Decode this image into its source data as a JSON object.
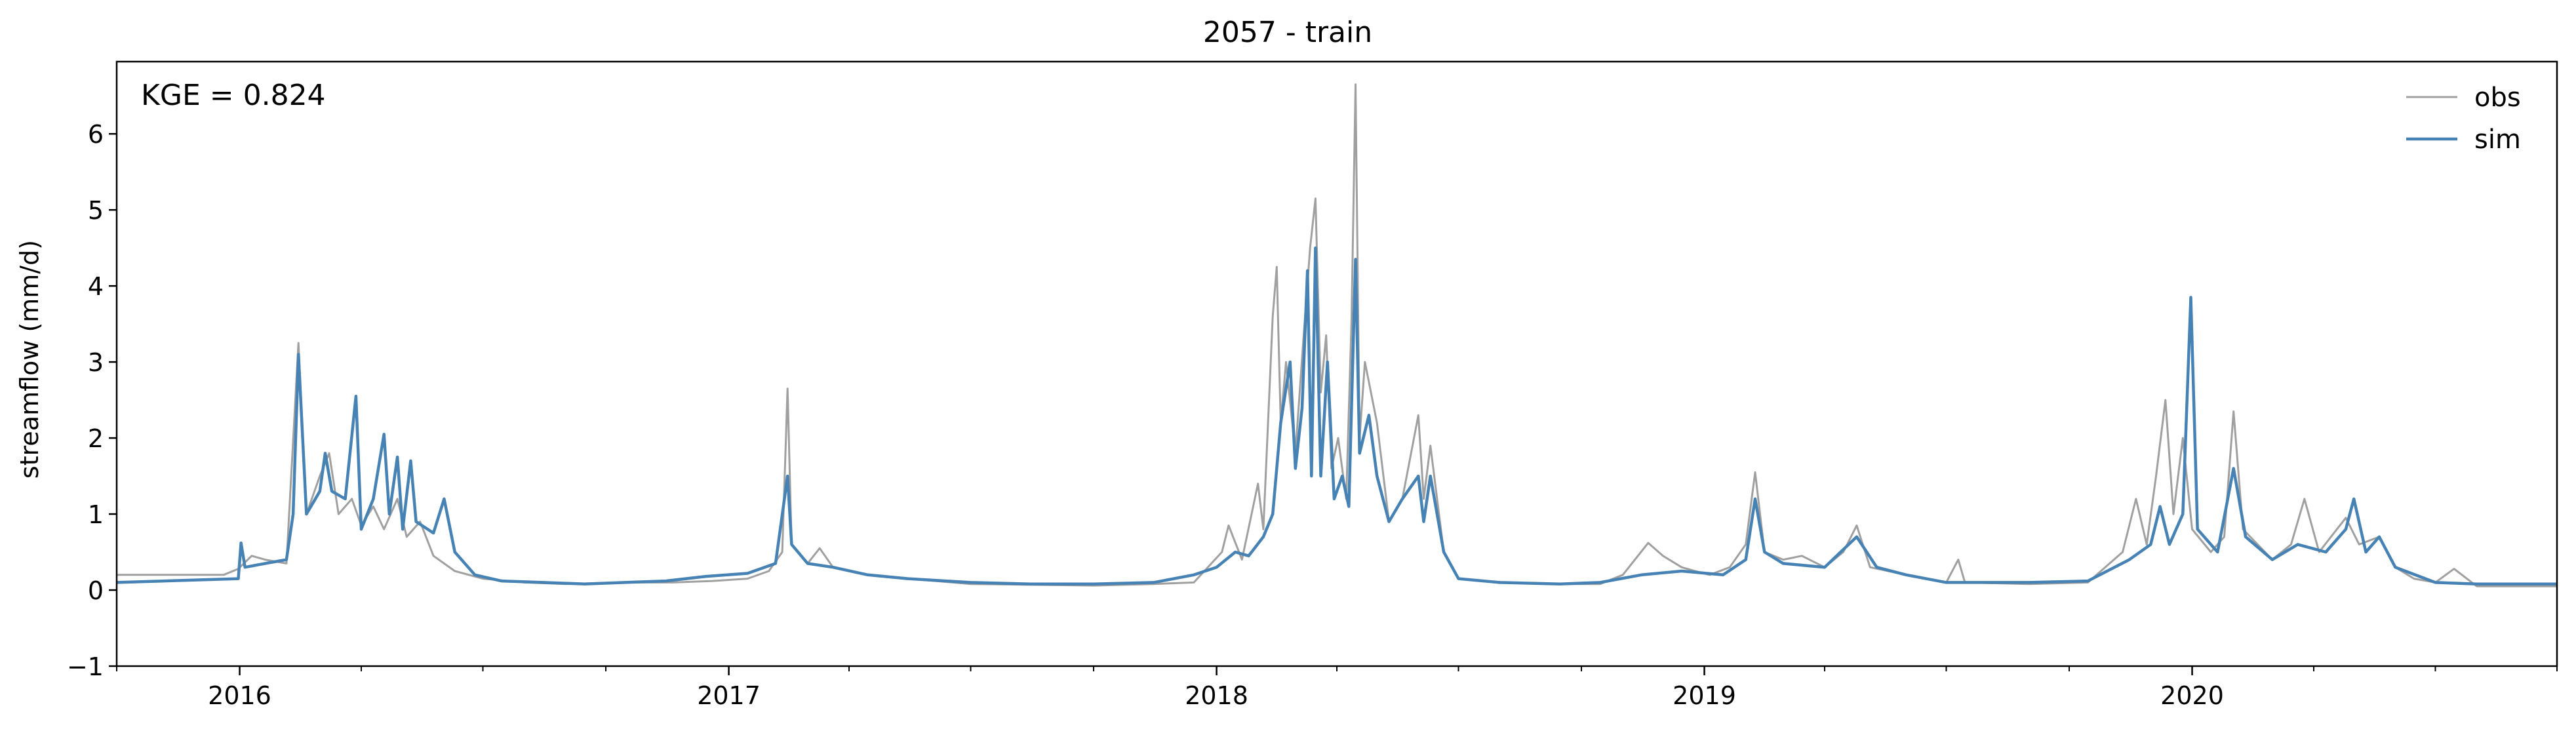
{
  "chart_data": {
    "type": "line",
    "title": "2057 - train",
    "xlabel": "",
    "ylabel": "streamflow (mm/d)",
    "annotation": "KGE = 0.824",
    "x_range": [
      "2015-10-01",
      "2020-09-30"
    ],
    "ylim": [
      -1,
      6.95
    ],
    "yticks": [
      -1,
      0,
      1,
      2,
      3,
      4,
      5,
      6
    ],
    "ytick_labels": [
      "−1",
      "0",
      "1",
      "2",
      "3",
      "4",
      "5",
      "6"
    ],
    "xticks_major": [
      {
        "date": "2016-01-01",
        "label": "2016"
      },
      {
        "date": "2017-01-01",
        "label": "2017"
      },
      {
        "date": "2018-01-01",
        "label": "2018"
      },
      {
        "date": "2019-01-01",
        "label": "2019"
      },
      {
        "date": "2020-01-01",
        "label": "2020"
      }
    ],
    "xticks_minor": [
      "2015-10-01",
      "2016-04-01",
      "2016-07-01",
      "2016-10-01",
      "2017-04-01",
      "2017-07-01",
      "2017-10-01",
      "2018-04-01",
      "2018-07-01",
      "2018-10-01",
      "2019-04-01",
      "2019-07-01",
      "2019-10-01",
      "2020-04-01",
      "2020-07-01",
      "2020-09-30"
    ],
    "grid": false,
    "legend_position": "top-right",
    "series": [
      {
        "name": "obs",
        "color": "#a0a0a0",
        "points": [
          [
            "2015-10-01",
            0.2
          ],
          [
            "2015-12-20",
            0.2
          ],
          [
            "2015-12-31",
            0.28
          ],
          [
            "2016-01-10",
            0.45
          ],
          [
            "2016-01-20",
            0.4
          ],
          [
            "2016-02-05",
            0.35
          ],
          [
            "2016-02-14",
            3.25
          ],
          [
            "2016-02-20",
            1.0
          ],
          [
            "2016-03-01",
            1.5
          ],
          [
            "2016-03-08",
            1.8
          ],
          [
            "2016-03-15",
            1.0
          ],
          [
            "2016-03-25",
            1.2
          ],
          [
            "2016-04-01",
            0.85
          ],
          [
            "2016-04-10",
            1.1
          ],
          [
            "2016-04-18",
            0.8
          ],
          [
            "2016-04-28",
            1.2
          ],
          [
            "2016-05-05",
            0.7
          ],
          [
            "2016-05-15",
            0.9
          ],
          [
            "2016-05-25",
            0.45
          ],
          [
            "2016-06-10",
            0.25
          ],
          [
            "2016-07-01",
            0.15
          ],
          [
            "2016-08-01",
            0.1
          ],
          [
            "2016-09-01",
            0.08
          ],
          [
            "2016-10-15",
            0.1
          ],
          [
            "2016-11-20",
            0.1
          ],
          [
            "2016-12-20",
            0.12
          ],
          [
            "2017-01-15",
            0.15
          ],
          [
            "2017-01-31",
            0.25
          ],
          [
            "2017-02-10",
            0.5
          ],
          [
            "2017-02-14",
            2.65
          ],
          [
            "2017-02-17",
            0.6
          ],
          [
            "2017-03-01",
            0.35
          ],
          [
            "2017-03-10",
            0.55
          ],
          [
            "2017-03-20",
            0.3
          ],
          [
            "2017-04-15",
            0.2
          ],
          [
            "2017-05-15",
            0.15
          ],
          [
            "2017-07-01",
            0.08
          ],
          [
            "2017-08-15",
            0.07
          ],
          [
            "2017-10-01",
            0.06
          ],
          [
            "2017-11-15",
            0.08
          ],
          [
            "2017-12-15",
            0.1
          ],
          [
            "2018-01-05",
            0.5
          ],
          [
            "2018-01-10",
            0.85
          ],
          [
            "2018-01-20",
            0.4
          ],
          [
            "2018-02-01",
            1.4
          ],
          [
            "2018-02-05",
            0.8
          ],
          [
            "2018-02-12",
            3.6
          ],
          [
            "2018-02-15",
            4.25
          ],
          [
            "2018-02-18",
            2.2
          ],
          [
            "2018-02-22",
            3.0
          ],
          [
            "2018-03-01",
            1.8
          ],
          [
            "2018-03-07",
            3.3
          ],
          [
            "2018-03-12",
            4.5
          ],
          [
            "2018-03-16",
            5.15
          ],
          [
            "2018-03-20",
            2.6
          ],
          [
            "2018-03-24",
            3.35
          ],
          [
            "2018-03-28",
            1.6
          ],
          [
            "2018-04-02",
            2.0
          ],
          [
            "2018-04-08",
            1.2
          ],
          [
            "2018-04-12",
            3.55
          ],
          [
            "2018-04-15",
            6.65
          ],
          [
            "2018-04-18",
            2.0
          ],
          [
            "2018-04-22",
            3.0
          ],
          [
            "2018-05-01",
            2.2
          ],
          [
            "2018-05-10",
            0.9
          ],
          [
            "2018-05-20",
            1.2
          ],
          [
            "2018-06-01",
            2.3
          ],
          [
            "2018-06-05",
            1.2
          ],
          [
            "2018-06-10",
            1.9
          ],
          [
            "2018-06-20",
            0.5
          ],
          [
            "2018-07-01",
            0.15
          ],
          [
            "2018-08-01",
            0.1
          ],
          [
            "2018-09-15",
            0.08
          ],
          [
            "2018-10-15",
            0.08
          ],
          [
            "2018-11-01",
            0.2
          ],
          [
            "2018-11-20",
            0.62
          ],
          [
            "2018-12-01",
            0.45
          ],
          [
            "2018-12-15",
            0.3
          ],
          [
            "2018-12-25",
            0.25
          ],
          [
            "2019-01-05",
            0.2
          ],
          [
            "2019-01-20",
            0.3
          ],
          [
            "2019-02-01",
            0.6
          ],
          [
            "2019-02-08",
            1.55
          ],
          [
            "2019-02-15",
            0.5
          ],
          [
            "2019-03-01",
            0.4
          ],
          [
            "2019-03-15",
            0.45
          ],
          [
            "2019-04-01",
            0.3
          ],
          [
            "2019-04-15",
            0.5
          ],
          [
            "2019-04-25",
            0.85
          ],
          [
            "2019-05-05",
            0.3
          ],
          [
            "2019-06-01",
            0.2
          ],
          [
            "2019-07-01",
            0.1
          ],
          [
            "2019-07-10",
            0.4
          ],
          [
            "2019-07-15",
            0.1
          ],
          [
            "2019-09-01",
            0.08
          ],
          [
            "2019-10-15",
            0.1
          ],
          [
            "2019-11-10",
            0.5
          ],
          [
            "2019-11-20",
            1.2
          ],
          [
            "2019-11-28",
            0.6
          ],
          [
            "2019-12-05",
            1.5
          ],
          [
            "2019-12-12",
            2.5
          ],
          [
            "2019-12-18",
            1.0
          ],
          [
            "2019-12-25",
            2.0
          ],
          [
            "2020-01-01",
            0.8
          ],
          [
            "2020-01-15",
            0.5
          ],
          [
            "2020-01-25",
            0.7
          ],
          [
            "2020-02-01",
            2.35
          ],
          [
            "2020-02-08",
            0.8
          ],
          [
            "2020-03-01",
            0.4
          ],
          [
            "2020-03-15",
            0.6
          ],
          [
            "2020-03-25",
            1.2
          ],
          [
            "2020-04-05",
            0.5
          ],
          [
            "2020-04-25",
            0.95
          ],
          [
            "2020-05-05",
            0.6
          ],
          [
            "2020-05-20",
            0.7
          ],
          [
            "2020-06-01",
            0.3
          ],
          [
            "2020-06-15",
            0.15
          ],
          [
            "2020-07-01",
            0.1
          ],
          [
            "2020-07-15",
            0.28
          ],
          [
            "2020-08-01",
            0.05
          ],
          [
            "2020-09-30",
            0.05
          ]
        ]
      },
      {
        "name": "sim",
        "color": "#4682b4",
        "points": [
          [
            "2015-10-01",
            0.1
          ],
          [
            "2015-12-31",
            0.15
          ],
          [
            "2016-01-02",
            0.62
          ],
          [
            "2016-01-05",
            0.3
          ],
          [
            "2016-01-20",
            0.35
          ],
          [
            "2016-02-05",
            0.4
          ],
          [
            "2016-02-10",
            1.0
          ],
          [
            "2016-02-14",
            3.1
          ],
          [
            "2016-02-20",
            1.0
          ],
          [
            "2016-03-01",
            1.3
          ],
          [
            "2016-03-05",
            1.8
          ],
          [
            "2016-03-10",
            1.3
          ],
          [
            "2016-03-20",
            1.2
          ],
          [
            "2016-03-28",
            2.55
          ],
          [
            "2016-04-01",
            0.8
          ],
          [
            "2016-04-10",
            1.2
          ],
          [
            "2016-04-18",
            2.05
          ],
          [
            "2016-04-22",
            1.0
          ],
          [
            "2016-04-28",
            1.75
          ],
          [
            "2016-05-02",
            0.8
          ],
          [
            "2016-05-08",
            1.7
          ],
          [
            "2016-05-12",
            0.9
          ],
          [
            "2016-05-25",
            0.75
          ],
          [
            "2016-06-02",
            1.2
          ],
          [
            "2016-06-10",
            0.5
          ],
          [
            "2016-06-25",
            0.2
          ],
          [
            "2016-07-15",
            0.12
          ],
          [
            "2016-08-15",
            0.1
          ],
          [
            "2016-09-15",
            0.08
          ],
          [
            "2016-10-15",
            0.1
          ],
          [
            "2016-11-15",
            0.12
          ],
          [
            "2016-12-15",
            0.18
          ],
          [
            "2017-01-15",
            0.22
          ],
          [
            "2017-02-05",
            0.35
          ],
          [
            "2017-02-14",
            1.5
          ],
          [
            "2017-02-17",
            0.6
          ],
          [
            "2017-03-01",
            0.35
          ],
          [
            "2017-03-20",
            0.3
          ],
          [
            "2017-04-15",
            0.2
          ],
          [
            "2017-05-15",
            0.15
          ],
          [
            "2017-07-01",
            0.1
          ],
          [
            "2017-08-15",
            0.08
          ],
          [
            "2017-10-01",
            0.08
          ],
          [
            "2017-11-15",
            0.1
          ],
          [
            "2017-12-15",
            0.2
          ],
          [
            "2018-01-01",
            0.3
          ],
          [
            "2018-01-15",
            0.5
          ],
          [
            "2018-01-25",
            0.45
          ],
          [
            "2018-02-05",
            0.7
          ],
          [
            "2018-02-12",
            1.0
          ],
          [
            "2018-02-18",
            2.2
          ],
          [
            "2018-02-25",
            3.0
          ],
          [
            "2018-03-01",
            1.6
          ],
          [
            "2018-03-06",
            2.4
          ],
          [
            "2018-03-10",
            4.2
          ],
          [
            "2018-03-13",
            1.5
          ],
          [
            "2018-03-16",
            4.5
          ],
          [
            "2018-03-20",
            1.5
          ],
          [
            "2018-03-25",
            3.0
          ],
          [
            "2018-03-30",
            1.2
          ],
          [
            "2018-04-05",
            1.5
          ],
          [
            "2018-04-10",
            1.1
          ],
          [
            "2018-04-15",
            4.35
          ],
          [
            "2018-04-18",
            1.8
          ],
          [
            "2018-04-25",
            2.3
          ],
          [
            "2018-05-01",
            1.5
          ],
          [
            "2018-05-10",
            0.9
          ],
          [
            "2018-05-20",
            1.2
          ],
          [
            "2018-06-01",
            1.5
          ],
          [
            "2018-06-05",
            0.9
          ],
          [
            "2018-06-10",
            1.5
          ],
          [
            "2018-06-20",
            0.5
          ],
          [
            "2018-07-01",
            0.15
          ],
          [
            "2018-08-01",
            0.1
          ],
          [
            "2018-09-15",
            0.08
          ],
          [
            "2018-10-15",
            0.1
          ],
          [
            "2018-11-15",
            0.2
          ],
          [
            "2018-12-15",
            0.25
          ],
          [
            "2019-01-15",
            0.2
          ],
          [
            "2019-02-01",
            0.4
          ],
          [
            "2019-02-08",
            1.2
          ],
          [
            "2019-02-15",
            0.5
          ],
          [
            "2019-03-01",
            0.35
          ],
          [
            "2019-04-01",
            0.3
          ],
          [
            "2019-04-25",
            0.7
          ],
          [
            "2019-05-10",
            0.3
          ],
          [
            "2019-06-01",
            0.2
          ],
          [
            "2019-07-01",
            0.1
          ],
          [
            "2019-09-01",
            0.1
          ],
          [
            "2019-10-15",
            0.12
          ],
          [
            "2019-11-15",
            0.4
          ],
          [
            "2019-12-01",
            0.6
          ],
          [
            "2019-12-08",
            1.1
          ],
          [
            "2019-12-15",
            0.6
          ],
          [
            "2019-12-25",
            1.0
          ],
          [
            "2019-12-31",
            3.85
          ],
          [
            "2020-01-05",
            0.8
          ],
          [
            "2020-01-20",
            0.5
          ],
          [
            "2020-02-01",
            1.6
          ],
          [
            "2020-02-10",
            0.7
          ],
          [
            "2020-03-01",
            0.4
          ],
          [
            "2020-03-20",
            0.6
          ],
          [
            "2020-04-10",
            0.5
          ],
          [
            "2020-04-25",
            0.8
          ],
          [
            "2020-05-01",
            1.2
          ],
          [
            "2020-05-10",
            0.5
          ],
          [
            "2020-05-20",
            0.7
          ],
          [
            "2020-06-01",
            0.3
          ],
          [
            "2020-07-01",
            0.1
          ],
          [
            "2020-08-01",
            0.08
          ],
          [
            "2020-09-30",
            0.08
          ]
        ]
      }
    ]
  }
}
